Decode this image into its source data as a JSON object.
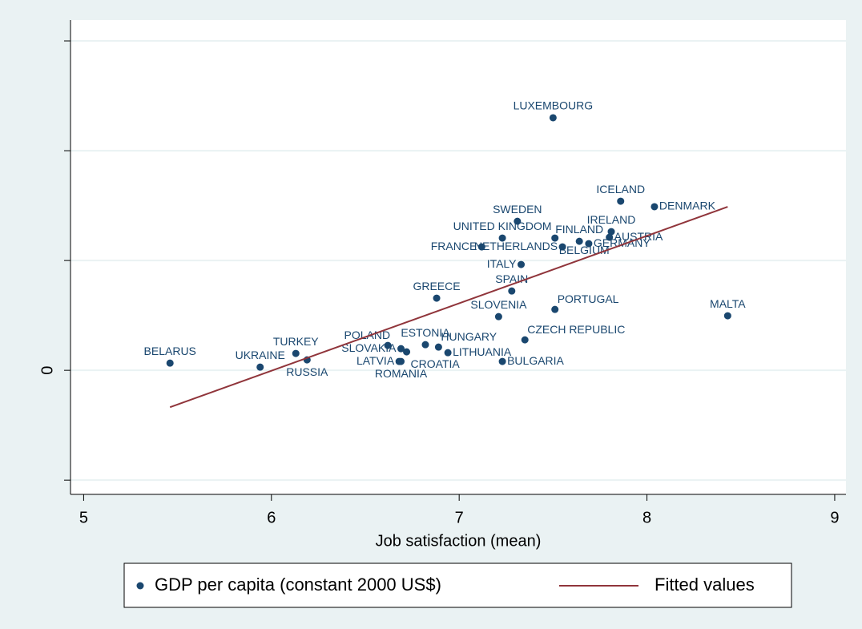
{
  "chart_data": {
    "type": "scatter",
    "x_label": "Job satisfaction (mean)",
    "xlim": [
      4.93,
      9.06
    ],
    "xticks": [
      5,
      6,
      7,
      8,
      9
    ],
    "ylim": [
      -22600,
      63800
    ],
    "yticks": [
      {
        "value": -20000,
        "label": null
      },
      0,
      {
        "value": 20000,
        "label": null
      },
      {
        "value": 40000,
        "label": null
      },
      {
        "value": 60000,
        "label": null
      }
    ],
    "grid": true,
    "series": [
      {
        "name": "GDP per capita (constant 2000 US$)",
        "type": "scatter",
        "color": "#1a476f",
        "labels": [
          "LUXEMBOURG",
          "ICELAND",
          "DENMARK",
          "SWEDEN",
          "IRELAND",
          "AUSTRIA",
          "UNITED KINGDOM",
          "BELGIUM",
          "FINLAND",
          "GERMANY",
          "NETHERLANDS",
          "FRANCE",
          "ITALY",
          "SPAIN",
          "GREECE",
          "PORTUGAL",
          "SLOVENIA",
          "MALTA",
          "CZECH REPUBLIC",
          "BELARUS",
          "UKRAINE",
          "RUSSIA",
          "TURKEY",
          "POLAND",
          "SLOVAKIA",
          "CROATIA",
          "ESTONIA",
          "HUNGARY",
          "LITHUANIA",
          "LATVIA",
          "ROMANIA",
          "BULGARIA"
        ],
        "x": [
          7.5,
          7.86,
          8.04,
          7.31,
          7.81,
          7.8,
          7.23,
          7.51,
          7.64,
          7.69,
          7.55,
          7.12,
          7.33,
          7.28,
          6.88,
          7.51,
          7.21,
          8.43,
          7.35,
          5.46,
          5.94,
          6.19,
          6.13,
          6.62,
          6.69,
          6.72,
          6.82,
          6.89,
          6.94,
          6.68,
          6.69,
          7.23
        ],
        "values": [
          46000,
          30800,
          29800,
          27150,
          25260,
          24230,
          24090,
          24090,
          23500,
          23070,
          22480,
          22480,
          19270,
          14450,
          13140,
          11090,
          9780,
          9930,
          5550,
          1310,
          580,
          1900,
          3070,
          4530,
          3940,
          3360,
          4670,
          4230,
          3210,
          1610,
          1610,
          1610
        ]
      },
      {
        "name": "Fitted values",
        "type": "line",
        "color": "#90353b",
        "x": [
          5.46,
          8.43
        ],
        "values": [
          -6720,
          29780
        ]
      }
    ]
  }
}
